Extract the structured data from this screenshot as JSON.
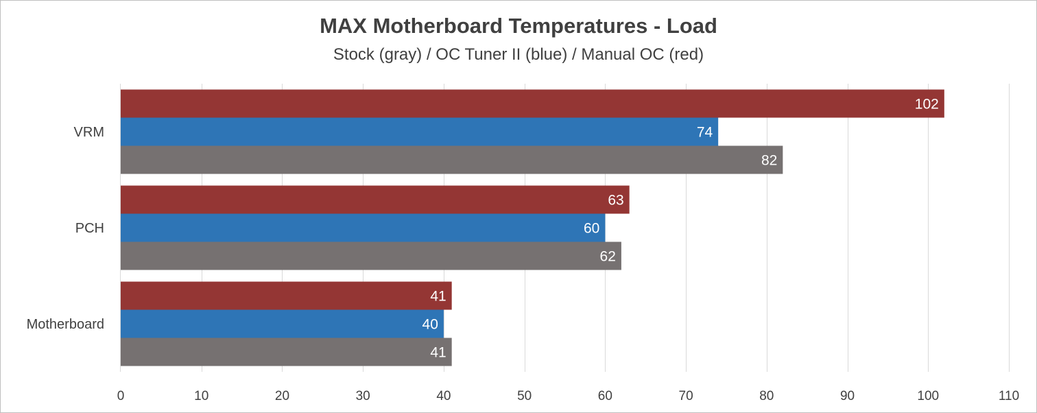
{
  "chart_data": {
    "type": "bar",
    "orientation": "horizontal",
    "title": "MAX Motherboard Temperatures - Load",
    "subtitle": "Stock (gray) / OC Tuner II (blue) / Manual OC (red)",
    "categories": [
      "VRM",
      "PCH",
      "Motherboard"
    ],
    "series": [
      {
        "name": "Manual OC (red)",
        "color": "#943634",
        "values": [
          102,
          63,
          41
        ]
      },
      {
        "name": "OC Tuner II (blue)",
        "color": "#2e75b6",
        "values": [
          74,
          60,
          40
        ]
      },
      {
        "name": "Stock (gray)",
        "color": "#767171",
        "values": [
          82,
          62,
          41
        ]
      }
    ],
    "xlim": [
      0,
      110
    ],
    "xticks": [
      0,
      10,
      20,
      30,
      40,
      50,
      60,
      70,
      80,
      90,
      100,
      110
    ],
    "grid": true,
    "legend": "none",
    "xlabel": "",
    "ylabel": ""
  }
}
